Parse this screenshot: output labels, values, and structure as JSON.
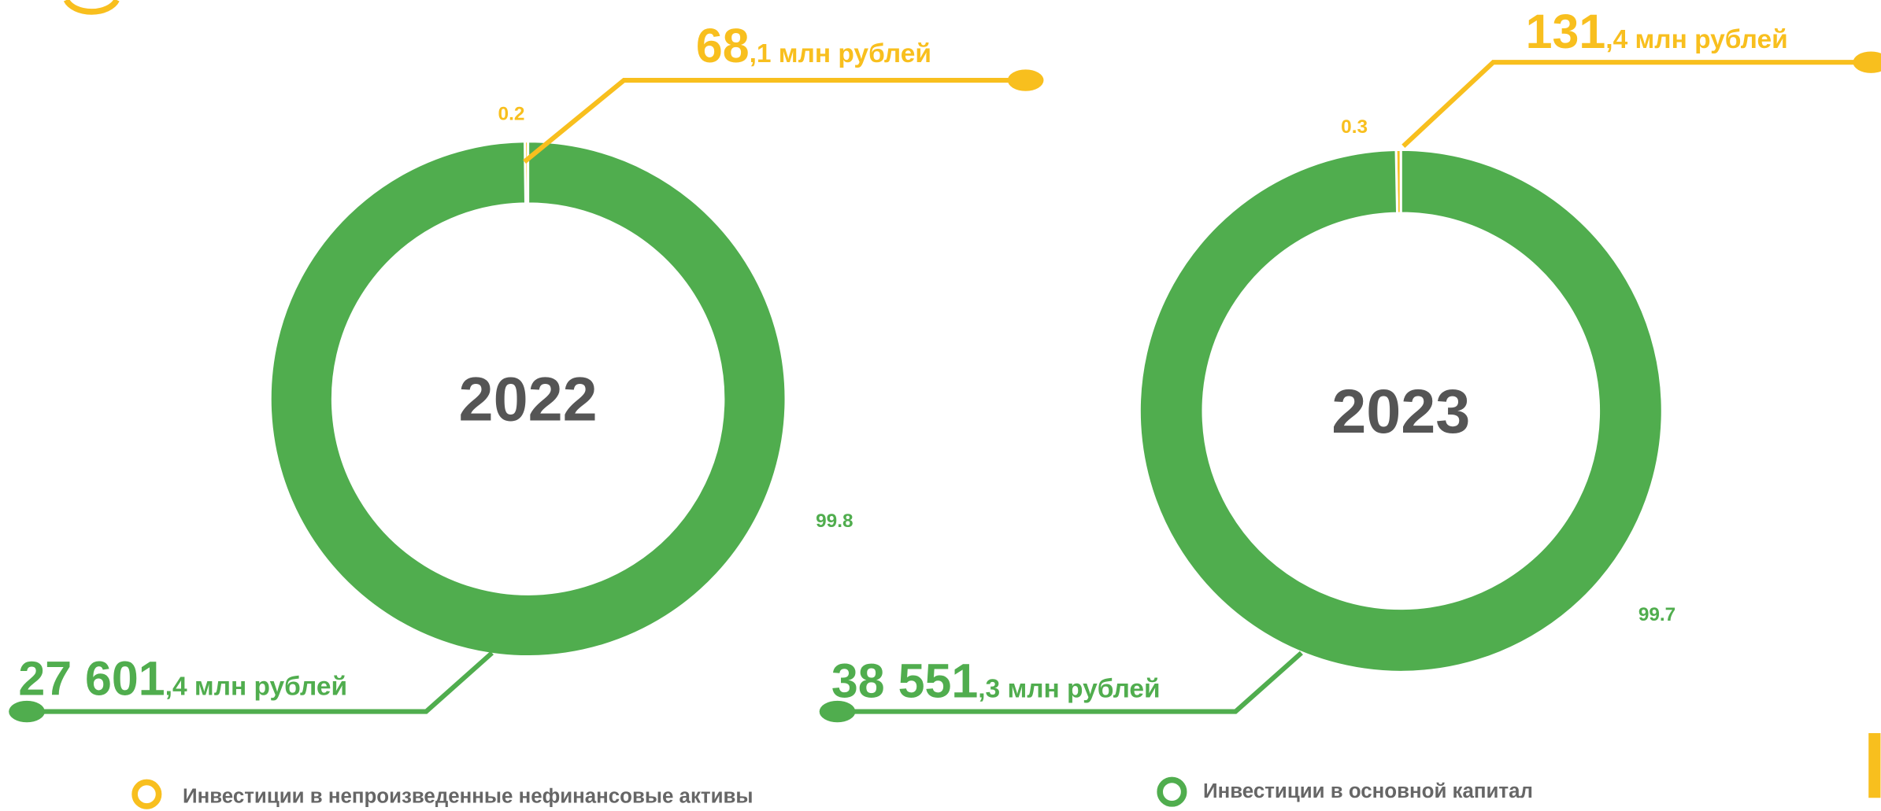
{
  "legend": {
    "labels": [
      "Инвестиции в непроизведенные  нефинансовые активы",
      "Инвестиции в основной капитал"
    ],
    "colors": [
      "#f8bf1e",
      "#50ad4e"
    ]
  },
  "chart_data": [
    {
      "type": "pie",
      "title": "2022",
      "values": [
        0.2,
        99.8
      ],
      "callouts": [
        [
          "68",
          ",1 млн  рублей"
        ],
        [
          "27 601",
          ",4 млн рублей"
        ]
      ]
    },
    {
      "type": "pie",
      "title": "2023",
      "values": [
        0.3,
        99.7
      ],
      "callouts": [
        [
          "131",
          ",4 млн  рублей"
        ],
        [
          "38 551",
          ",3 млн рублей"
        ]
      ]
    }
  ]
}
